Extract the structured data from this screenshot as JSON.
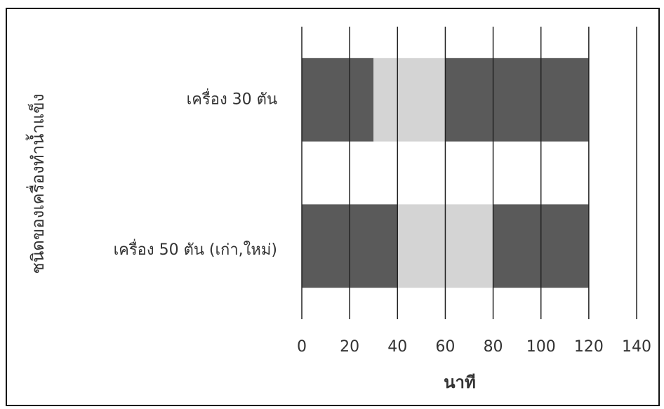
{
  "chart_data": {
    "type": "stacked-barh",
    "categories": [
      "เครื่อง 30 ตัน",
      "เครื่อง 50 ตัน (เก่า,ใหม่)"
    ],
    "series": [
      {
        "color": "#5a5a5a",
        "values": [
          30,
          40
        ]
      },
      {
        "color": "#d4d4d4",
        "values": [
          30,
          40
        ]
      },
      {
        "color": "#5a5a5a",
        "values": [
          60,
          40
        ]
      }
    ],
    "xlim": [
      0,
      140
    ],
    "xticks": [
      0,
      20,
      40,
      60,
      80,
      100,
      120,
      140
    ],
    "grid": true,
    "xlabel": "นาที",
    "ylabel": "ชนิดของเครื่องทำน้ำแข็ง"
  }
}
